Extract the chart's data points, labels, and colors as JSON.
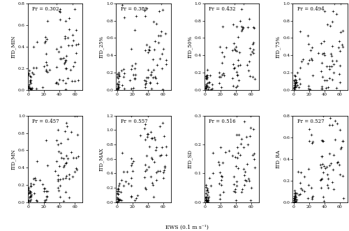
{
  "panels": [
    {
      "ylabel": "ITD_MIN",
      "pr": "Pr = 0.302",
      "ylim": [
        0.0,
        0.8
      ],
      "yticks": [
        0.0,
        0.2,
        0.4,
        0.6,
        0.8
      ]
    },
    {
      "ylabel": "ITD_25%",
      "pr": "Pr = 0.380",
      "ylim": [
        0.0,
        1.0
      ],
      "yticks": [
        0.0,
        0.2,
        0.4,
        0.6,
        0.8,
        1.0
      ]
    },
    {
      "ylabel": "ITD_50%",
      "pr": "Pr = 0.432",
      "ylim": [
        0.0,
        1.0
      ],
      "yticks": [
        0.0,
        0.2,
        0.4,
        0.6,
        0.8,
        1.0
      ]
    },
    {
      "ylabel": "ITD_75%",
      "pr": "Pr = 0.494",
      "ylim": [
        0.0,
        1.0
      ],
      "yticks": [
        0.0,
        0.2,
        0.4,
        0.6,
        0.8,
        1.0
      ]
    },
    {
      "ylabel": "ITD_MN",
      "pr": "Pr = 0.457",
      "ylim": [
        0.0,
        1.0
      ],
      "yticks": [
        0.0,
        0.2,
        0.4,
        0.6,
        0.8,
        1.0
      ]
    },
    {
      "ylabel": "ITD_MAX",
      "pr": "Pr = 0.557",
      "ylim": [
        0.0,
        1.2
      ],
      "yticks": [
        0.0,
        0.2,
        0.4,
        0.6,
        0.8,
        1.0,
        1.2
      ]
    },
    {
      "ylabel": "ITD_SD",
      "pr": "Pr = 0.516",
      "ylim": [
        0.0,
        0.3
      ],
      "yticks": [
        0.0,
        0.1,
        0.2,
        0.3
      ]
    },
    {
      "ylabel": "ITD_RA",
      "pr": "Pr = 0.527",
      "ylim": [
        0.0,
        0.8
      ],
      "yticks": [
        0.0,
        0.2,
        0.4,
        0.6,
        0.8
      ]
    }
  ],
  "xlim": [
    -1,
    70
  ],
  "xticks": [
    0,
    20,
    40,
    60
  ],
  "xlabel": "EWS (0.1 m s⁻¹)",
  "markersize": 2.5,
  "background_color": "#ffffff"
}
